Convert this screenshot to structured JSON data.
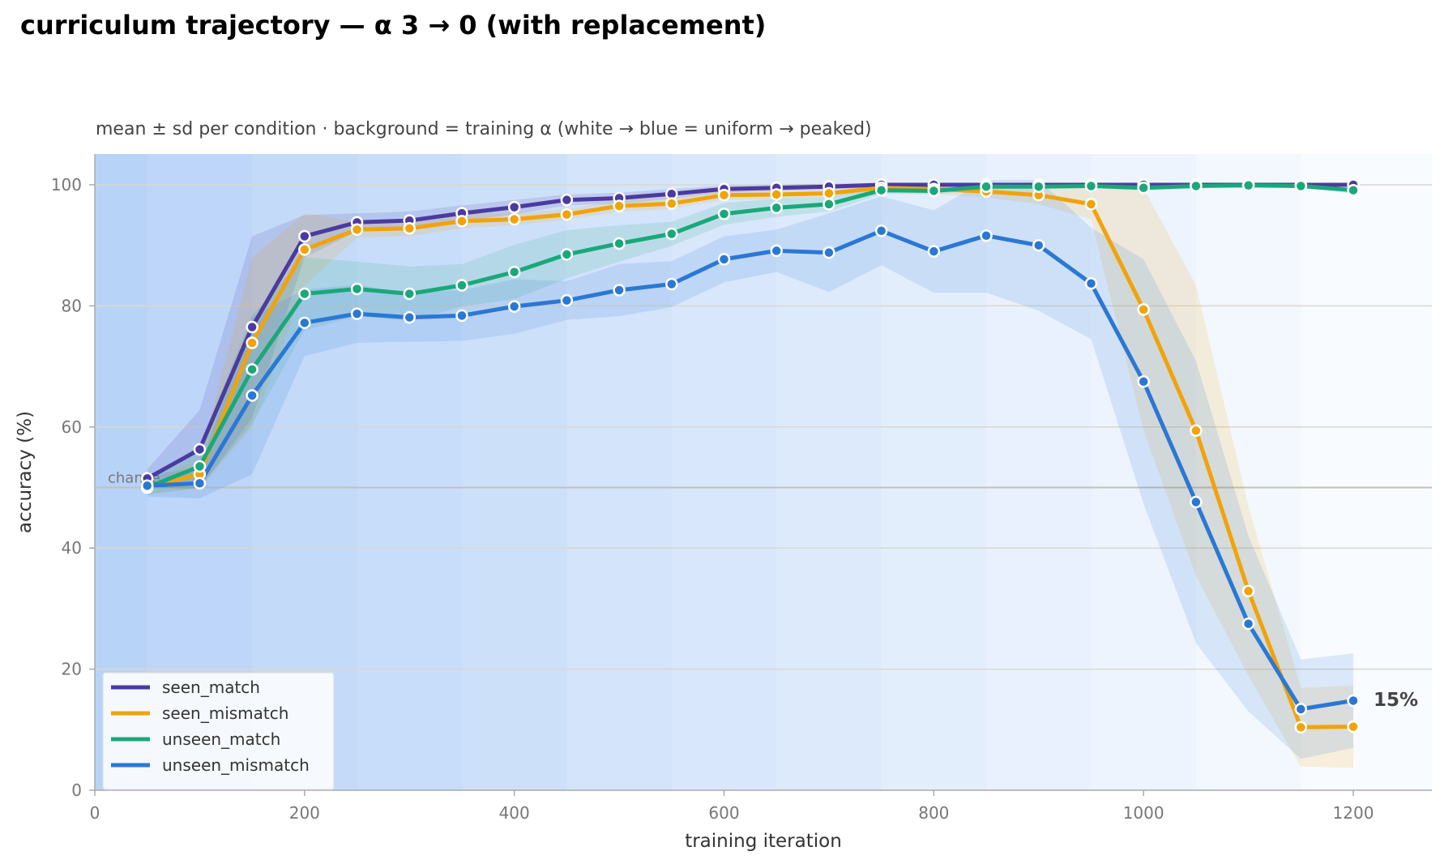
{
  "title": "curriculum trajectory — α 3 → 0 (with replacement)",
  "subtitle": "mean ± sd per condition · background = training α (white → blue = uniform → peaked)",
  "chart_data": {
    "type": "line",
    "xlabel": "training iteration",
    "ylabel": "accuracy (%)",
    "xlim": [
      0,
      1275
    ],
    "ylim": [
      0,
      105
    ],
    "xticks": [
      0,
      200,
      400,
      600,
      800,
      1000,
      1200
    ],
    "yticks": [
      0,
      20,
      40,
      60,
      80,
      100
    ],
    "grid": "horizontal",
    "legend_position": "bottom-left",
    "chance_line": {
      "y": 50,
      "label": "chance"
    },
    "end_annotation": {
      "series": "unseen_mismatch",
      "x": 1200,
      "y": 15,
      "text": "15%"
    },
    "background_alpha": {
      "x_breaks": [
        0,
        50,
        150,
        250,
        350,
        450,
        550,
        650,
        750,
        850,
        950,
        1050,
        1150,
        1275
      ],
      "alpha": [
        3.0,
        2.75,
        2.5,
        2.25,
        2.0,
        1.75,
        1.5,
        1.25,
        1.0,
        0.75,
        0.5,
        0.25,
        0.0
      ]
    },
    "x": [
      50,
      100,
      150,
      200,
      250,
      300,
      350,
      400,
      450,
      500,
      550,
      600,
      650,
      700,
      750,
      800,
      850,
      900,
      950,
      1000,
      1050,
      1100,
      1150,
      1200
    ],
    "series": [
      {
        "name": "seen_match",
        "color": "#4b3aa0",
        "values": [
          51.5,
          56.3,
          76.5,
          91.5,
          93.8,
          94.1,
          95.3,
          96.3,
          97.5,
          97.8,
          98.5,
          99.3,
          99.5,
          99.7,
          100,
          100,
          100,
          100,
          100,
          100,
          100,
          100,
          100,
          100
        ],
        "sd": [
          1.5,
          6.5,
          15,
          3.5,
          1.5,
          1.5,
          1.3,
          1.2,
          0.9,
          0.9,
          0.8,
          0.6,
          0.5,
          0.5,
          0.3,
          0.3,
          0.3,
          0.3,
          0.3,
          0.3,
          0.3,
          0.3,
          0.3,
          0.3
        ]
      },
      {
        "name": "seen_mismatch",
        "color": "#f0a30a",
        "values": [
          50.0,
          52.2,
          73.9,
          89.3,
          92.6,
          92.8,
          94.0,
          94.3,
          95.1,
          96.5,
          96.9,
          98.3,
          98.4,
          98.6,
          99.5,
          99.3,
          98.9,
          98.3,
          96.8,
          79.4,
          59.4,
          32.9,
          10.4,
          10.5
        ],
        "sd": [
          1.0,
          2.5,
          14,
          6,
          1.3,
          1.3,
          1.2,
          1.0,
          0.9,
          0.9,
          0.9,
          0.8,
          0.7,
          0.6,
          0.6,
          0.8,
          1.0,
          1.5,
          2.5,
          20,
          24,
          14,
          6.5,
          6.8
        ]
      },
      {
        "name": "unseen_match",
        "color": "#1aa87a",
        "values": [
          50.0,
          53.5,
          69.5,
          82.0,
          82.8,
          82.0,
          83.4,
          85.6,
          88.5,
          90.3,
          91.9,
          95.2,
          96.2,
          96.8,
          99.1,
          99.0,
          99.7,
          99.7,
          99.8,
          99.5,
          99.8,
          99.9,
          99.8,
          99.1
        ],
        "sd": [
          1.2,
          3.5,
          9,
          6,
          4.5,
          4.5,
          3.5,
          4.5,
          4.0,
          3.0,
          2.0,
          1.8,
          1.5,
          1.2,
          0.6,
          0.6,
          0.4,
          0.3,
          0.3,
          0.5,
          0.3,
          0.3,
          0.3,
          0.6
        ]
      },
      {
        "name": "unseen_mismatch",
        "color": "#2b77d4",
        "values": [
          50.3,
          50.7,
          65.2,
          77.2,
          78.7,
          78.1,
          78.4,
          79.9,
          80.9,
          82.6,
          83.6,
          87.7,
          89.1,
          88.8,
          92.4,
          89.0,
          91.6,
          90.0,
          83.7,
          67.5,
          47.6,
          27.5,
          13.4,
          14.8
        ],
        "sd": [
          1.8,
          2.5,
          13,
          5.5,
          4.8,
          4.0,
          4.2,
          4.5,
          3.2,
          4.3,
          3.8,
          3.8,
          3.5,
          6.5,
          5.7,
          6.8,
          9.4,
          10.8,
          9.2,
          20.2,
          23.3,
          14.5,
          8.2,
          7.8
        ]
      }
    ]
  }
}
